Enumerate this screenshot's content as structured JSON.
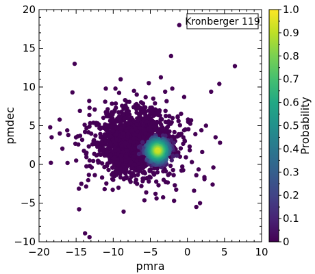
{
  "chart_data": {
    "type": "scatter",
    "xlabel": "pmra",
    "ylabel": "pmdec",
    "xlim": [
      -20,
      10
    ],
    "ylim": [
      -10,
      20
    ],
    "x_ticks": [
      -20,
      -15,
      -10,
      -5,
      0,
      5,
      10
    ],
    "x_tick_labels": [
      "−20",
      "−15",
      "−10",
      "−5",
      "0",
      "5",
      "10"
    ],
    "y_ticks": [
      -10,
      -5,
      0,
      5,
      10,
      15,
      20
    ],
    "y_tick_labels": [
      "−10",
      "−5",
      "0",
      "5",
      "10",
      "15",
      "20"
    ],
    "annotation": "Kronberger 119",
    "colorbar": {
      "label": "Probability",
      "range": [
        0,
        1
      ],
      "ticks": [
        0,
        0.1,
        0.2,
        0.3,
        0.4,
        0.5,
        0.6,
        0.7,
        0.8,
        0.9,
        1.0
      ],
      "tick_labels": [
        "0",
        "0.1",
        "0.2",
        "0.3",
        "0.4",
        "0.5",
        "0.6",
        "0.7",
        "0.8",
        "0.9",
        "1.0"
      ],
      "colormap": "viridis"
    },
    "cluster_center": {
      "pmra": -4.0,
      "pmdec": 1.8
    },
    "points": [
      {
        "x": -15.2,
        "y": 13.0,
        "p": 0
      },
      {
        "x": -9.0,
        "y": 11.0,
        "p": 0
      },
      {
        "x": -15.5,
        "y": 9.3,
        "p": 0
      },
      {
        "x": -18.5,
        "y": 4.8,
        "p": 0
      },
      {
        "x": -18.3,
        "y": 3.5,
        "p": 0
      },
      {
        "x": -17.2,
        "y": 4.0,
        "p": 0
      },
      {
        "x": -16.2,
        "y": 4.4,
        "p": 0
      },
      {
        "x": -13.8,
        "y": 4.2,
        "p": 0
      },
      {
        "x": -12.5,
        "y": 7.1,
        "p": 0
      },
      {
        "x": -13.2,
        "y": 7.3,
        "p": 0
      },
      {
        "x": -11.0,
        "y": 9.8,
        "p": 0
      },
      {
        "x": -9.7,
        "y": 9.8,
        "p": 0
      },
      {
        "x": -7.2,
        "y": 9.5,
        "p": 0
      },
      {
        "x": -5.2,
        "y": 10.5,
        "p": 0
      },
      {
        "x": -3.0,
        "y": 9.4,
        "p": 0
      },
      {
        "x": -1.1,
        "y": 18.0,
        "p": 0
      },
      {
        "x": -2.2,
        "y": 14.0,
        "p": 0
      },
      {
        "x": -4.6,
        "y": 8.5,
        "p": 0
      },
      {
        "x": -8.4,
        "y": 8.3,
        "p": 0
      },
      {
        "x": 6.4,
        "y": 12.7,
        "p": 0
      },
      {
        "x": 4.3,
        "y": 10.4,
        "p": 0
      },
      {
        "x": 3.2,
        "y": 9.4,
        "p": 0
      },
      {
        "x": 0.5,
        "y": 5.7,
        "p": 0
      },
      {
        "x": 2.5,
        "y": 5.0,
        "p": 0
      },
      {
        "x": 3.8,
        "y": 3.5,
        "p": 0
      },
      {
        "x": 4.4,
        "y": 2.8,
        "p": 0
      },
      {
        "x": 2.0,
        "y": 1.6,
        "p": 0
      },
      {
        "x": 0.6,
        "y": 0.3,
        "p": 0
      },
      {
        "x": 3.5,
        "y": -0.4,
        "p": 0
      },
      {
        "x": 1.2,
        "y": -1.4,
        "p": 0
      },
      {
        "x": 2.3,
        "y": -1.9,
        "p": 0
      },
      {
        "x": 3.4,
        "y": -2.6,
        "p": 0
      },
      {
        "x": 0.9,
        "y": -3.4,
        "p": 0
      },
      {
        "x": 1.7,
        "y": -5.0,
        "p": 0
      },
      {
        "x": 1.2,
        "y": -5.5,
        "p": 0
      },
      {
        "x": -1.8,
        "y": -4.7,
        "p": 0
      },
      {
        "x": -1.7,
        "y": -2.7,
        "p": 0
      },
      {
        "x": -4.3,
        "y": -3.8,
        "p": 0
      },
      {
        "x": -8.6,
        "y": -6.1,
        "p": 0
      },
      {
        "x": -14.6,
        "y": -5.8,
        "p": 0
      },
      {
        "x": -13.8,
        "y": -8.9,
        "p": 0
      },
      {
        "x": -13.2,
        "y": -9.4,
        "p": 0
      },
      {
        "x": -14.3,
        "y": -2.5,
        "p": 0
      },
      {
        "x": -18.4,
        "y": 0.2,
        "p": 0
      },
      {
        "x": -15.0,
        "y": 0.5,
        "p": 0
      },
      {
        "x": -11.5,
        "y": -1.7,
        "p": 0
      },
      {
        "x": -10.0,
        "y": -2.0,
        "p": 0
      },
      {
        "x": -8.5,
        "y": -1.8,
        "p": 0
      },
      {
        "x": -7.0,
        "y": -2.3,
        "p": 0
      },
      {
        "x": -6.2,
        "y": -2.8,
        "p": 0
      },
      {
        "x": -5.2,
        "y": -2.2,
        "p": 0
      },
      {
        "x": -3.2,
        "y": -2.0,
        "p": 0
      },
      {
        "x": -2.4,
        "y": -1.2,
        "p": 0
      },
      {
        "x": -0.8,
        "y": -0.8,
        "p": 0
      },
      {
        "x": 0.3,
        "y": 2.3,
        "p": 0
      },
      {
        "x": -1.2,
        "y": 5.6,
        "p": 0
      },
      {
        "x": -2.0,
        "y": 6.0,
        "p": 0
      },
      {
        "x": -3.8,
        "y": 6.8,
        "p": 0
      },
      {
        "x": -5.8,
        "y": 7.4,
        "p": 0
      },
      {
        "x": -9.8,
        "y": 7.0,
        "p": 0
      },
      {
        "x": -12.1,
        "y": 5.3,
        "p": 0
      },
      {
        "x": -12.8,
        "y": 2.6,
        "p": 0
      },
      {
        "x": -13.6,
        "y": 1.5,
        "p": 0
      },
      {
        "x": -11.9,
        "y": 0.3,
        "p": 0
      },
      {
        "x": -12.9,
        "y": -0.4,
        "p": 0
      },
      {
        "x": -9.6,
        "y": -0.6,
        "p": 0
      },
      {
        "x": -8.9,
        "y": 0.6,
        "p": 0
      },
      {
        "x": -10.4,
        "y": 4.9,
        "p": 0
      },
      {
        "x": -9.2,
        "y": 5.9,
        "p": 0
      },
      {
        "x": -8.6,
        "y": 6.4,
        "p": 0
      },
      {
        "x": -7.6,
        "y": 6.0,
        "p": 0
      },
      {
        "x": -6.7,
        "y": 5.7,
        "p": 0
      },
      {
        "x": -1.4,
        "y": 3.6,
        "p": 0
      },
      {
        "x": -1.0,
        "y": 1.0,
        "p": 0
      },
      {
        "x": -7.8,
        "y": -1.0,
        "p": 0
      },
      {
        "x": -6.5,
        "y": -0.9,
        "p": 0
      },
      {
        "x": -4.6,
        "y": -1.1,
        "p": 0
      },
      {
        "x": -10.8,
        "y": 1.6,
        "p": 0
      }
    ]
  }
}
